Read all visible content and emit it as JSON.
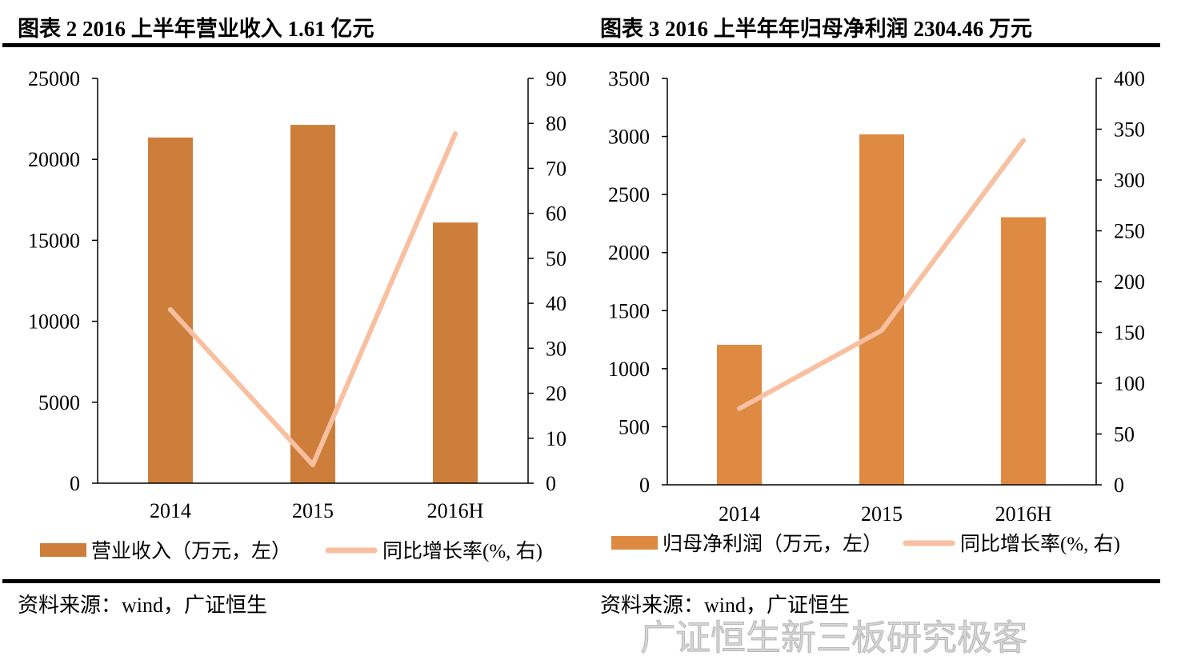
{
  "colors": {
    "bar_left": "#CD7E3B",
    "bar_right": "#DE8A43",
    "line": "#F8BFA0"
  },
  "chart_data": [
    {
      "type": "bar+line",
      "title": "图表 2 2016 上半年营业收入 1.61 亿元",
      "categories": [
        "2014",
        "2015",
        "2016H"
      ],
      "series": [
        {
          "name": "营业收入（万元，左）",
          "type": "bar",
          "axis": "left",
          "values": [
            21350,
            22130,
            16100
          ]
        },
        {
          "name": "同比增长率(%, 右)",
          "type": "line",
          "axis": "right",
          "values": [
            38.6,
            4.1,
            77.7
          ]
        }
      ],
      "ylim_left": [
        0,
        25000
      ],
      "yticks_left": [
        "0",
        "5000",
        "10000",
        "15000",
        "20000",
        "25000"
      ],
      "ylim_right": [
        0,
        90
      ],
      "yticks_right": [
        "0",
        "10",
        "20",
        "30",
        "40",
        "50",
        "60",
        "70",
        "80",
        "90"
      ],
      "grid": false,
      "legend": "bottom",
      "source": "资料来源：wind，广证恒生"
    },
    {
      "type": "bar+line",
      "title": "图表 3 2016 上半年年归母净利润 2304.46 万元",
      "categories": [
        "2014",
        "2015",
        "2016H"
      ],
      "series": [
        {
          "name": "归母净利润（万元，左）",
          "type": "bar",
          "axis": "left",
          "values": [
            1206,
            3018,
            2304.46
          ]
        },
        {
          "name": "同比增长率(%, 右)",
          "type": "line",
          "axis": "right",
          "values": [
            75,
            152,
            339
          ]
        }
      ],
      "ylim_left": [
        0,
        3500
      ],
      "yticks_left": [
        "0",
        "500",
        "1000",
        "1500",
        "2000",
        "2500",
        "3000",
        "3500"
      ],
      "ylim_right": [
        0,
        400
      ],
      "yticks_right": [
        "0",
        "50",
        "100",
        "150",
        "200",
        "250",
        "300",
        "350",
        "400"
      ],
      "grid": false,
      "legend": "bottom",
      "source": "资料来源：wind，广证恒生"
    }
  ],
  "watermark": "广证恒生新三板研究极客"
}
